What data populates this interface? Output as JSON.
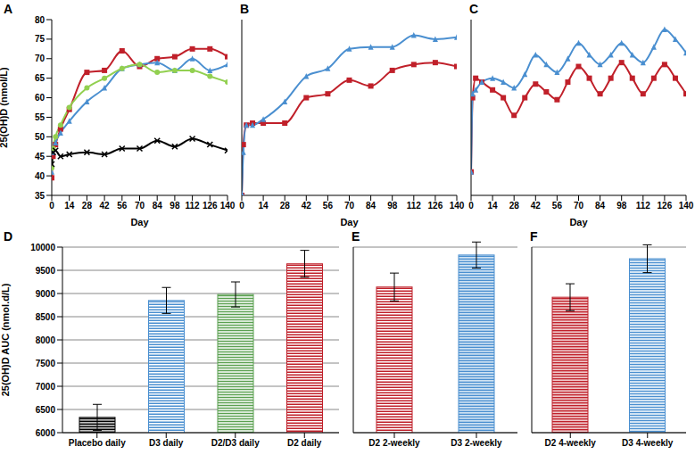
{
  "chart_data": [
    {
      "title": "A",
      "type": "line",
      "x_label": "Day",
      "y_label": "25(OH)D (nmol/L)",
      "x": [
        0,
        1,
        3,
        7,
        14,
        28,
        42,
        56,
        70,
        84,
        98,
        112,
        126,
        140
      ],
      "xlim": [
        0,
        140
      ],
      "xticks": [
        0,
        14,
        28,
        42,
        56,
        70,
        84,
        98,
        112,
        126,
        140
      ],
      "ylim": [
        35,
        80
      ],
      "yticks": [
        35,
        40,
        45,
        50,
        55,
        60,
        65,
        70,
        75,
        80
      ],
      "series": [
        {
          "color": "#c0202a",
          "marker": "square",
          "values": [
            39.5,
            45,
            48,
            52,
            57,
            66.5,
            67,
            72,
            68,
            70,
            70.5,
            72.5,
            72.5,
            70.5
          ]
        },
        {
          "color": "#4a8fd0",
          "marker": "triangle",
          "values": [
            41,
            46,
            48.5,
            51,
            54,
            59,
            62.5,
            67.5,
            68.5,
            69,
            67,
            70,
            67,
            68.5
          ]
        },
        {
          "color": "#92d050",
          "marker": "circle",
          "values": [
            42,
            47,
            50,
            53,
            57.5,
            62.5,
            65,
            67.5,
            68.5,
            66.5,
            67,
            67,
            65.5,
            64
          ]
        },
        {
          "color": "#000000",
          "marker": "cross",
          "values": [
            43,
            46,
            46.5,
            45,
            45.5,
            46,
            45.5,
            47,
            47,
            49,
            47.5,
            49.5,
            48,
            46.5
          ]
        }
      ]
    },
    {
      "title": "B",
      "type": "line",
      "x_label": "Day",
      "tick_labels": "x",
      "x": [
        0,
        1,
        3,
        7,
        14,
        28,
        42,
        56,
        70,
        84,
        98,
        112,
        126,
        140
      ],
      "xlim": [
        0,
        140
      ],
      "xticks": [
        0,
        14,
        28,
        42,
        56,
        70,
        84,
        98,
        112,
        126,
        140
      ],
      "ylim": [
        35,
        80
      ],
      "yticks": [
        35,
        40,
        45,
        50,
        55,
        60,
        65,
        70,
        75,
        80
      ],
      "series": [
        {
          "color": "#c0202a",
          "marker": "square",
          "values": [
            35,
            48,
            53,
            53.5,
            53.5,
            53.5,
            60,
            61,
            64.5,
            63,
            67,
            68.5,
            69,
            68
          ]
        },
        {
          "color": "#4a8fd0",
          "marker": "triangle",
          "values": [
            35.5,
            46,
            53,
            53,
            54.5,
            59,
            65.5,
            67.5,
            72.5,
            73,
            73,
            76,
            75,
            75.5
          ]
        }
      ]
    },
    {
      "title": "C",
      "type": "line",
      "x_label": "Day",
      "tick_labels": "x",
      "x": [
        0,
        1,
        3,
        7,
        14,
        21,
        28,
        35,
        42,
        49,
        56,
        63,
        70,
        77,
        84,
        91,
        98,
        105,
        112,
        119,
        126,
        133,
        140
      ],
      "xlim": [
        0,
        140
      ],
      "xticks": [
        0,
        14,
        28,
        42,
        56,
        70,
        84,
        98,
        112,
        126,
        140
      ],
      "ylim": [
        35,
        80
      ],
      "yticks": [
        35,
        40,
        45,
        50,
        55,
        60,
        65,
        70,
        75,
        80
      ],
      "series": [
        {
          "color": "#c0202a",
          "marker": "square",
          "values": [
            41,
            60,
            65,
            64,
            62,
            60,
            55.5,
            60,
            63.5,
            61.5,
            59.5,
            64,
            68,
            65,
            61,
            65,
            69,
            65,
            61,
            65,
            68.5,
            65,
            61
          ]
        },
        {
          "color": "#4a8fd0",
          "marker": "triangle",
          "values": [
            41,
            61,
            62,
            64,
            65,
            64,
            62.5,
            66,
            71,
            68.5,
            66.5,
            70,
            74,
            71,
            68.5,
            71,
            74,
            71,
            69,
            73,
            77.5,
            75,
            71.5
          ]
        }
      ]
    },
    {
      "title": "D",
      "type": "bar",
      "y_label": "25(OH)D AUC (nmol.d/L)",
      "categories": [
        "Placebo daily",
        "D3 daily",
        "D2/D3 daily",
        "D2 daily"
      ],
      "values": [
        6330,
        8850,
        8980,
        9640
      ],
      "errors": [
        280,
        280,
        270,
        290
      ],
      "colors": [
        "#000000",
        "#4a8fd0",
        "#5aa050",
        "#c0202a"
      ],
      "ylim": [
        6000,
        10000
      ],
      "yticks": [
        6000,
        6500,
        7000,
        7500,
        8000,
        8500,
        9000,
        9500,
        10000
      ],
      "grid": true
    },
    {
      "title": "E",
      "type": "bar",
      "tick_labels": "x",
      "categories": [
        "D2 2-weekly",
        "D3 2-weekly"
      ],
      "values": [
        9140,
        9830
      ],
      "errors": [
        300,
        280
      ],
      "colors": [
        "#c0202a",
        "#4a8fd0"
      ],
      "ylim": [
        6000,
        10000
      ],
      "yticks": [
        6000,
        6500,
        7000,
        7500,
        8000,
        8500,
        9000,
        9500,
        10000
      ],
      "grid": true
    },
    {
      "title": "F",
      "type": "bar",
      "tick_labels": "x",
      "categories": [
        "D2 4-weekly",
        "D3 4-weekly"
      ],
      "values": [
        8920,
        9750
      ],
      "errors": [
        290,
        300
      ],
      "colors": [
        "#c0202a",
        "#4a8fd0"
      ],
      "ylim": [
        6000,
        10000
      ],
      "yticks": [
        6000,
        6500,
        7000,
        7500,
        8000,
        8500,
        9000,
        9500,
        10000
      ],
      "grid": true
    }
  ]
}
